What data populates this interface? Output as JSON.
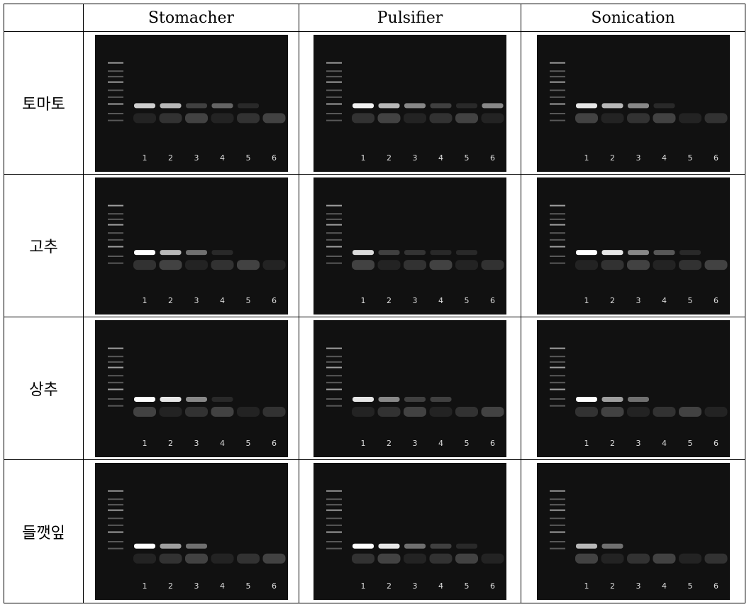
{
  "columns": [
    "Stomacher",
    "Pulsifier",
    "Sonication"
  ],
  "rows": [
    {
      "label": "토마토"
    },
    {
      "label": "고추"
    },
    {
      "label": "상추"
    },
    {
      "label": "들깻잎"
    }
  ],
  "lane_labels": [
    "1",
    "2",
    "3",
    "4",
    "5",
    "6"
  ]
}
